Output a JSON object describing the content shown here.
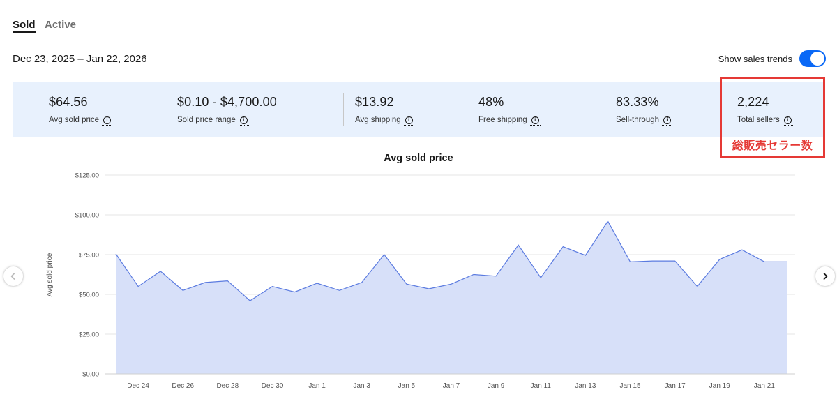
{
  "tabs": [
    {
      "label": "Sold",
      "selected": true
    },
    {
      "label": "Active",
      "selected": false
    }
  ],
  "date_range": "Dec 23, 2025 – Jan 22, 2026",
  "sales_trends": {
    "label": "Show sales trends",
    "enabled": true
  },
  "stats": [
    {
      "value": "$64.56",
      "label": "Avg sold price"
    },
    {
      "value": "$0.10 - $4,700.00",
      "label": "Sold price range"
    },
    {
      "value": "$13.92",
      "label": "Avg shipping"
    },
    {
      "value": "48%",
      "label": "Free shipping"
    },
    {
      "value": "83.33%",
      "label": "Sell-through"
    },
    {
      "value": "2,224",
      "label": "Total sellers"
    }
  ],
  "annotation": {
    "text": "総販売セラー数",
    "color": "#e53935"
  },
  "colors": {
    "accent": "#0968f6",
    "stats_bg": "#e8f1fd",
    "area_fill": "#d7e0f9",
    "line": "#5b7be0"
  },
  "chart_data": {
    "type": "area",
    "title": "Avg sold price",
    "ylabel": "Avg sold price",
    "ylim": [
      0,
      125
    ],
    "yticks": [
      "$0.00",
      "$25.00",
      "$50.00",
      "$75.00",
      "$100.00",
      "$125.00"
    ],
    "xticks": [
      "Dec 24",
      "Dec 26",
      "Dec 28",
      "Dec 30",
      "Jan 1",
      "Jan 3",
      "Jan 5",
      "Jan 7",
      "Jan 9",
      "Jan 11",
      "Jan 13",
      "Jan 15",
      "Jan 17",
      "Jan 19",
      "Jan 21"
    ],
    "x": [
      "Dec 23",
      "Dec 24",
      "Dec 25",
      "Dec 26",
      "Dec 27",
      "Dec 28",
      "Dec 29",
      "Dec 30",
      "Dec 31",
      "Jan 1",
      "Jan 2",
      "Jan 3",
      "Jan 4",
      "Jan 5",
      "Jan 6",
      "Jan 7",
      "Jan 8",
      "Jan 9",
      "Jan 10",
      "Jan 11",
      "Jan 12",
      "Jan 13",
      "Jan 14",
      "Jan 15",
      "Jan 16",
      "Jan 17",
      "Jan 18",
      "Jan 19",
      "Jan 20",
      "Jan 21",
      "Jan 22"
    ],
    "values": [
      75.5,
      55,
      64.5,
      52.5,
      57.5,
      58.5,
      46,
      55,
      51.5,
      57,
      52.5,
      57.5,
      75,
      56.5,
      53.5,
      56.5,
      62.5,
      61.5,
      81,
      60.5,
      80,
      74.5,
      96,
      70.5,
      71,
      71,
      55,
      72,
      78,
      70.5,
      70.5
    ],
    "grid": true,
    "legend": "none"
  },
  "nav": {
    "prev_icon": "chevron-left-icon",
    "next_icon": "chevron-right-icon"
  }
}
